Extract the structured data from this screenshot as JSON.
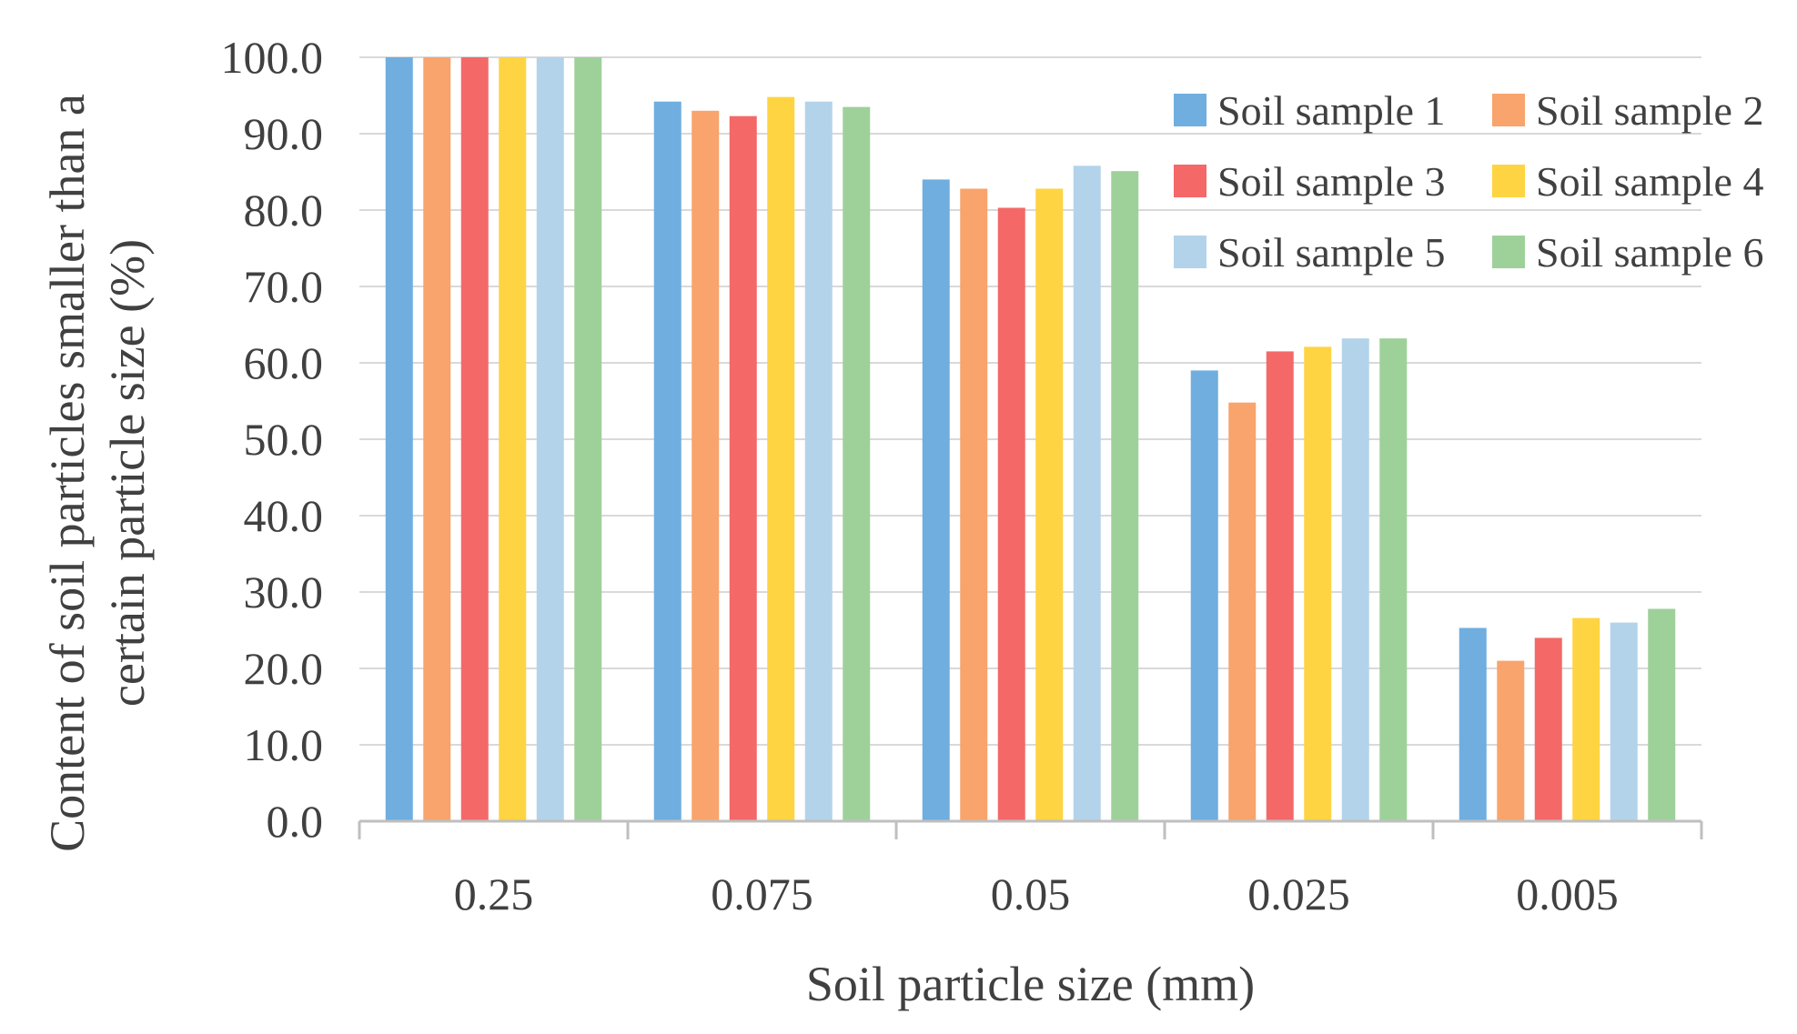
{
  "chart_data": {
    "type": "bar",
    "title": "",
    "xlabel": "Soil particle size (mm)",
    "ylabel": [
      "Content of soil particles smaller than a",
      "certain particle size (%)"
    ],
    "categories": [
      "0.25",
      "0.075",
      "0.05",
      "0.025",
      "0.005"
    ],
    "ylim": [
      0,
      100
    ],
    "yticks": [
      "0.0",
      "10.0",
      "20.0",
      "30.0",
      "40.0",
      "50.0",
      "60.0",
      "70.0",
      "80.0",
      "90.0",
      "100.0"
    ],
    "grid": true,
    "legend_position": "top-right",
    "series": [
      {
        "name": "Soil sample 1",
        "color": "#6faedf",
        "values": [
          100.0,
          94.2,
          84.0,
          59.0,
          25.3
        ]
      },
      {
        "name": "Soil sample 2",
        "color": "#f8a46c",
        "values": [
          100.0,
          93.0,
          82.8,
          54.8,
          21.0
        ]
      },
      {
        "name": "Soil sample 3",
        "color": "#f46868",
        "values": [
          100.0,
          92.3,
          80.3,
          61.5,
          24.0
        ]
      },
      {
        "name": "Soil sample 4",
        "color": "#fed442",
        "values": [
          100.0,
          94.8,
          82.8,
          62.1,
          26.6
        ]
      },
      {
        "name": "Soil sample 5",
        "color": "#b3d3ea",
        "values": [
          100.0,
          94.2,
          85.8,
          63.2,
          26.0
        ]
      },
      {
        "name": "Soil sample 6",
        "color": "#9ed19a",
        "values": [
          100.0,
          93.5,
          85.1,
          63.2,
          27.8
        ]
      }
    ]
  }
}
